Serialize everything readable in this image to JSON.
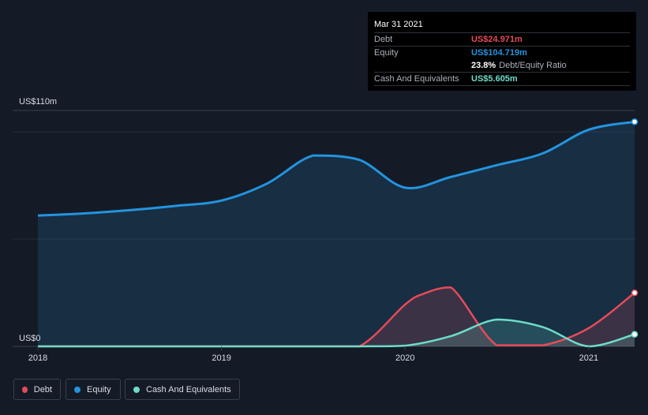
{
  "tooltip": {
    "date": "Mar 31 2021",
    "debt_label": "Debt",
    "debt_value": "US$24.971m",
    "equity_label": "Equity",
    "equity_value": "US$104.719m",
    "ratio_value": "23.8%",
    "ratio_label": "Debt/Equity Ratio",
    "cash_label": "Cash And Equivalents",
    "cash_value": "US$5.605m"
  },
  "legend": {
    "debt": "Debt",
    "equity": "Equity",
    "cash": "Cash And Equivalents"
  },
  "colors": {
    "debt": "#e64a5a",
    "equity": "#2394df",
    "cash": "#6ddcc9",
    "background": "#151b26"
  },
  "chart_data": {
    "type": "area",
    "y_axis_labels": [
      "US$110m",
      "US$0"
    ],
    "x_tick_labels": [
      "2018",
      "2019",
      "2020",
      "2021"
    ],
    "ylim": [
      0,
      110
    ],
    "xlim": [
      2018.0,
      2021.25
    ],
    "grid": true,
    "legend_position": "bottom-left",
    "series": [
      {
        "name": "Debt",
        "x": [
          2018.0,
          2019.0,
          2019.5,
          2019.75,
          2020.0,
          2020.1,
          2020.25,
          2020.5,
          2020.75,
          2021.0,
          2021.25
        ],
        "values": [
          0,
          0,
          0,
          0,
          19.5,
          24.5,
          27.5,
          0.5,
          0.5,
          8.5,
          24.971
        ]
      },
      {
        "name": "Equity",
        "x": [
          2018.0,
          2018.25,
          2018.5,
          2018.75,
          2019.0,
          2019.25,
          2019.5,
          2019.75,
          2020.0,
          2020.25,
          2020.5,
          2020.75,
          2021.0,
          2021.25
        ],
        "values": [
          61,
          62,
          63.5,
          65.5,
          68,
          76,
          89,
          87,
          74,
          79,
          84.5,
          90,
          101,
          104.719
        ]
      },
      {
        "name": "Cash And Equivalents",
        "x": [
          2018.0,
          2019.0,
          2019.5,
          2019.75,
          2020.0,
          2020.25,
          2020.5,
          2020.75,
          2021.0,
          2021.25
        ],
        "values": [
          0,
          0,
          0,
          0,
          0.3,
          4.8,
          12.5,
          9.0,
          0,
          5.605
        ]
      }
    ]
  }
}
